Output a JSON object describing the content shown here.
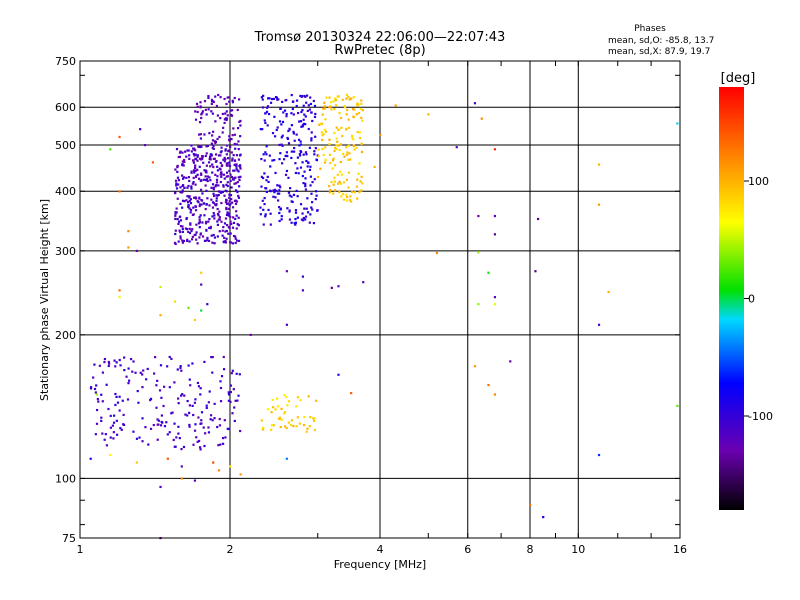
{
  "chart_data": {
    "type": "scatter",
    "title": "Tromsø 20130324 22:06:00—22:07:43",
    "subtitle": "RwPretec (8p)",
    "xlabel": "Frequency [MHz]",
    "ylabel": "Stationary phase Virtual Height [km]",
    "x_scale": "log",
    "y_scale": "log",
    "xlim": [
      1,
      16
    ],
    "ylim": [
      75,
      750
    ],
    "x_ticks": [
      1,
      2,
      4,
      6,
      8,
      10,
      16
    ],
    "y_ticks": [
      75,
      100,
      200,
      300,
      400,
      500,
      600,
      750
    ],
    "grid": true,
    "colorbar": {
      "label": "[deg]",
      "ticks": [
        100,
        0,
        -100
      ],
      "range": [
        -180,
        180
      ]
    },
    "stats": {
      "heading": "Phases",
      "o_line": "mean, sd,O: -85.8, 13.7",
      "x_line": "mean, sd,X:  87.9, 19.7"
    },
    "clusters": [
      {
        "x_range": [
          1.55,
          2.1
        ],
        "y_range": [
          310,
          500
        ],
        "phase": -115,
        "n": 450
      },
      {
        "x_range": [
          1.7,
          2.1
        ],
        "y_range": [
          450,
          640
        ],
        "phase": -120,
        "n": 120
      },
      {
        "x_range": [
          2.3,
          3.0
        ],
        "y_range": [
          340,
          640
        ],
        "phase": -95,
        "n": 260
      },
      {
        "x_range": [
          3.0,
          3.7
        ],
        "y_range": [
          380,
          640
        ],
        "phase": 90,
        "n": 160
      },
      {
        "x_range": [
          1.05,
          2.1
        ],
        "y_range": [
          115,
          180
        ],
        "phase": -110,
        "n": 220
      },
      {
        "x_range": [
          2.3,
          3.0
        ],
        "y_range": [
          125,
          150
        ],
        "phase": 85,
        "n": 50
      }
    ],
    "points": [
      {
        "x": 4.3,
        "y": 605,
        "phase": 110
      },
      {
        "x": 5.7,
        "y": 495,
        "phase": -120
      },
      {
        "x": 6.2,
        "y": 612,
        "phase": -110
      },
      {
        "x": 6.8,
        "y": 490,
        "phase": 160
      },
      {
        "x": 6.3,
        "y": 355,
        "phase": -130
      },
      {
        "x": 6.8,
        "y": 355,
        "phase": -120
      },
      {
        "x": 8.3,
        "y": 350,
        "phase": -140
      },
      {
        "x": 6.8,
        "y": 325,
        "phase": -140
      },
      {
        "x": 11.0,
        "y": 375,
        "phase": 110
      },
      {
        "x": 11.0,
        "y": 455,
        "phase": 100
      },
      {
        "x": 15.8,
        "y": 555,
        "phase": -20
      },
      {
        "x": 5.2,
        "y": 297,
        "phase": 120
      },
      {
        "x": 6.3,
        "y": 298,
        "phase": 40
      },
      {
        "x": 6.6,
        "y": 270,
        "phase": 10
      },
      {
        "x": 8.2,
        "y": 272,
        "phase": -140
      },
      {
        "x": 6.8,
        "y": 240,
        "phase": -120
      },
      {
        "x": 6.3,
        "y": 232,
        "phase": 40
      },
      {
        "x": 6.8,
        "y": 232,
        "phase": 60
      },
      {
        "x": 11.0,
        "y": 210,
        "phase": -110
      },
      {
        "x": 11.5,
        "y": 246,
        "phase": 100
      },
      {
        "x": 3.3,
        "y": 253,
        "phase": -120
      },
      {
        "x": 3.2,
        "y": 251,
        "phase": -140
      },
      {
        "x": 3.7,
        "y": 258,
        "phase": -120
      },
      {
        "x": 2.8,
        "y": 265,
        "phase": -100
      },
      {
        "x": 2.8,
        "y": 248,
        "phase": -110
      },
      {
        "x": 2.6,
        "y": 272,
        "phase": -130
      },
      {
        "x": 1.75,
        "y": 270,
        "phase": 90
      },
      {
        "x": 1.75,
        "y": 255,
        "phase": -120
      },
      {
        "x": 1.8,
        "y": 232,
        "phase": -100
      },
      {
        "x": 1.2,
        "y": 248,
        "phase": 130
      },
      {
        "x": 1.2,
        "y": 240,
        "phase": 60
      },
      {
        "x": 1.45,
        "y": 252,
        "phase": 50
      },
      {
        "x": 1.55,
        "y": 235,
        "phase": 80
      },
      {
        "x": 1.65,
        "y": 228,
        "phase": 30
      },
      {
        "x": 1.75,
        "y": 225,
        "phase": 0
      },
      {
        "x": 1.45,
        "y": 220,
        "phase": 100
      },
      {
        "x": 1.7,
        "y": 215,
        "phase": 90
      },
      {
        "x": 2.2,
        "y": 200,
        "phase": -130
      },
      {
        "x": 2.6,
        "y": 210,
        "phase": -110
      },
      {
        "x": 7.3,
        "y": 176,
        "phase": -130
      },
      {
        "x": 6.2,
        "y": 172,
        "phase": 110
      },
      {
        "x": 6.6,
        "y": 157,
        "phase": 130
      },
      {
        "x": 6.8,
        "y": 150,
        "phase": 120
      },
      {
        "x": 11.0,
        "y": 112,
        "phase": -60
      },
      {
        "x": 15.8,
        "y": 142,
        "phase": 30
      },
      {
        "x": 8.0,
        "y": 88,
        "phase": 130
      },
      {
        "x": 8.5,
        "y": 83,
        "phase": -80
      },
      {
        "x": 3.3,
        "y": 165,
        "phase": -100
      },
      {
        "x": 3.5,
        "y": 151,
        "phase": 140
      },
      {
        "x": 1.45,
        "y": 75,
        "phase": -130
      },
      {
        "x": 1.45,
        "y": 96,
        "phase": -110
      },
      {
        "x": 1.7,
        "y": 99,
        "phase": -120
      },
      {
        "x": 1.6,
        "y": 100,
        "phase": 120
      },
      {
        "x": 1.9,
        "y": 104,
        "phase": 120
      },
      {
        "x": 2.0,
        "y": 106,
        "phase": 70
      },
      {
        "x": 1.85,
        "y": 108,
        "phase": 150
      },
      {
        "x": 1.6,
        "y": 106,
        "phase": -120
      },
      {
        "x": 1.3,
        "y": 108,
        "phase": 90
      },
      {
        "x": 1.15,
        "y": 112,
        "phase": 70
      },
      {
        "x": 1.05,
        "y": 110,
        "phase": -90
      },
      {
        "x": 1.08,
        "y": 150,
        "phase": 40
      },
      {
        "x": 1.5,
        "y": 110,
        "phase": 140
      },
      {
        "x": 2.1,
        "y": 102,
        "phase": 110
      },
      {
        "x": 2.6,
        "y": 110,
        "phase": -40
      },
      {
        "x": 1.35,
        "y": 500,
        "phase": -120
      },
      {
        "x": 1.32,
        "y": 540,
        "phase": -110
      },
      {
        "x": 1.2,
        "y": 520,
        "phase": 140
      },
      {
        "x": 1.15,
        "y": 490,
        "phase": 20
      },
      {
        "x": 1.2,
        "y": 400,
        "phase": 130
      },
      {
        "x": 1.25,
        "y": 330,
        "phase": 120
      },
      {
        "x": 1.4,
        "y": 460,
        "phase": 140
      },
      {
        "x": 1.3,
        "y": 300,
        "phase": -130
      },
      {
        "x": 1.25,
        "y": 305,
        "phase": 110
      },
      {
        "x": 4.0,
        "y": 525,
        "phase": 120
      },
      {
        "x": 3.9,
        "y": 450,
        "phase": 100
      },
      {
        "x": 5.0,
        "y": 580,
        "phase": 100
      },
      {
        "x": 6.4,
        "y": 568,
        "phase": 120
      }
    ]
  }
}
